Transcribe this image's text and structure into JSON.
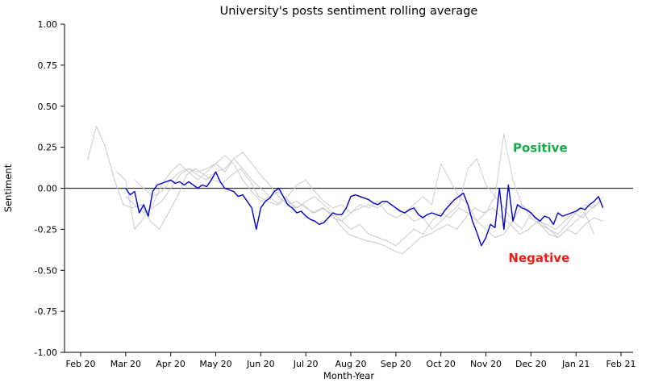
{
  "chart_data": {
    "type": "line",
    "title": "University's posts sentiment rolling average",
    "xlabel": "Month-Year",
    "ylabel": "Sentiment",
    "ylim": [
      -1.0,
      1.0
    ],
    "xlim_months": [
      0,
      12
    ],
    "grid": false,
    "legend": "none",
    "zero_line": {
      "value": 0.0,
      "color": "#333333"
    },
    "ytick_labels": [
      "1.00",
      "0.75",
      "0.50",
      "0.25",
      "0.00",
      "-0.25",
      "-0.50",
      "-0.75",
      "-1.00"
    ],
    "ytick_values": [
      1.0,
      0.75,
      0.5,
      0.25,
      0.0,
      -0.25,
      -0.5,
      -0.75,
      -1.0
    ],
    "xtick_labels": [
      "Feb 20",
      "Mar 20",
      "Apr 20",
      "May 20",
      "Jun 20",
      "Jul 20",
      "Aug 20",
      "Sep 20",
      "Oct 20",
      "Nov 20",
      "Dec 20",
      "Jan 21",
      "Feb 21"
    ],
    "xtick_months": [
      0,
      1,
      2,
      3,
      4,
      5,
      6,
      7,
      8,
      9,
      10,
      11,
      12
    ],
    "annotations": [
      {
        "text": "Positive",
        "color": "#17a846",
        "x_month": 9.6,
        "y_value": 0.22
      },
      {
        "text": "Negative",
        "color": "#e32017",
        "x_month": 9.5,
        "y_value": -0.45
      }
    ],
    "series": [
      {
        "name": "background-series-1",
        "role": "background",
        "color": "#c9c9c9",
        "width": 1,
        "x0": 0.15,
        "dx": 0.2,
        "y": [
          0.17,
          0.38,
          0.25,
          0.05,
          -0.1,
          -0.12,
          -0.1,
          -0.2,
          -0.25,
          -0.15,
          -0.05,
          0.08,
          0.12,
          0.08,
          0.05,
          0.03,
          0.08,
          0.12,
          0.05,
          -0.05,
          -0.08,
          -0.1,
          -0.05,
          -0.12,
          -0.1,
          -0.15,
          -0.12,
          -0.15,
          -0.22,
          -0.28,
          -0.3,
          -0.32,
          -0.33,
          -0.35,
          -0.38,
          -0.4,
          -0.35,
          -0.3,
          -0.28,
          -0.25,
          -0.22,
          -0.25,
          -0.18,
          -0.12,
          -0.15,
          -0.12,
          -0.18,
          -0.22,
          -0.28,
          -0.25,
          -0.2,
          -0.22,
          -0.25,
          -0.2,
          -0.15,
          -0.18,
          -0.12,
          -0.08
        ]
      },
      {
        "name": "background-series-2",
        "role": "background",
        "color": "#cccccc",
        "width": 1,
        "x0": 0.8,
        "dx": 0.2,
        "y": [
          0.1,
          0.05,
          -0.25,
          -0.18,
          -0.1,
          0.02,
          0.1,
          0.15,
          0.1,
          0.05,
          0.1,
          0.15,
          0.2,
          0.15,
          0.05,
          -0.02,
          -0.08,
          -0.05,
          -0.1,
          -0.05,
          0.02,
          0.05,
          -0.02,
          -0.08,
          -0.12,
          -0.1,
          -0.15,
          -0.12,
          -0.1,
          -0.12,
          -0.08,
          -0.12,
          -0.15,
          -0.1,
          -0.05,
          -0.1,
          0.15,
          0.05,
          -0.05,
          -0.1,
          -0.2,
          -0.15,
          -0.05,
          0.33,
          0.05,
          -0.1,
          -0.18,
          -0.22,
          -0.25,
          -0.28,
          -0.22,
          -0.15,
          -0.1,
          -0.12,
          -0.05
        ]
      },
      {
        "name": "background-series-3",
        "role": "background",
        "color": "#c9c9c9",
        "width": 1,
        "x0": 1.0,
        "dx": 0.2,
        "y": [
          -0.05,
          -0.1,
          -0.15,
          -0.12,
          -0.08,
          0.0,
          0.08,
          0.12,
          0.1,
          0.12,
          0.15,
          0.1,
          0.18,
          0.22,
          0.15,
          0.08,
          0.02,
          -0.05,
          -0.1,
          -0.08,
          -0.12,
          -0.15,
          -0.12,
          -0.18,
          -0.2,
          -0.25,
          -0.22,
          -0.28,
          -0.3,
          -0.32,
          -0.35,
          -0.3,
          -0.25,
          -0.28,
          -0.2,
          -0.15,
          -0.18,
          -0.12,
          -0.15,
          -0.2,
          -0.25,
          -0.3,
          -0.28,
          -0.2,
          -0.1,
          -0.15,
          -0.22,
          -0.28,
          -0.3,
          -0.25,
          -0.28,
          -0.22,
          -0.18,
          -0.2
        ]
      },
      {
        "name": "background-series-4",
        "role": "background",
        "color": "#cccccc",
        "width": 1,
        "x0": 1.2,
        "dx": 0.2,
        "y": [
          0.05,
          0.0,
          -0.05,
          -0.02,
          0.05,
          0.1,
          0.12,
          0.08,
          0.05,
          0.1,
          0.12,
          0.18,
          0.12,
          0.05,
          0.0,
          -0.05,
          -0.02,
          -0.08,
          -0.12,
          -0.08,
          -0.05,
          -0.1,
          -0.15,
          -0.2,
          -0.15,
          -0.1,
          -0.12,
          -0.08,
          -0.15,
          -0.18,
          -0.15,
          -0.2,
          -0.18,
          -0.25,
          -0.2,
          -0.15,
          -0.1,
          0.12,
          0.18,
          0.02,
          -0.05,
          -0.12,
          -0.2,
          -0.25,
          -0.15,
          -0.2,
          -0.25,
          -0.3,
          -0.25,
          -0.2,
          -0.15,
          -0.28
        ]
      },
      {
        "name": "rolling-average",
        "role": "main",
        "color": "#0000cd",
        "width": 1.4,
        "x0": 1.0,
        "dx": 0.1,
        "y": [
          0.0,
          -0.04,
          -0.02,
          -0.15,
          -0.1,
          -0.17,
          -0.02,
          0.02,
          0.03,
          0.04,
          0.05,
          0.03,
          0.04,
          0.02,
          0.04,
          0.02,
          0.0,
          0.02,
          0.01,
          0.05,
          0.1,
          0.04,
          0.0,
          -0.01,
          -0.02,
          -0.05,
          -0.04,
          -0.08,
          -0.12,
          -0.25,
          -0.12,
          -0.08,
          -0.06,
          -0.02,
          0.0,
          -0.05,
          -0.1,
          -0.12,
          -0.15,
          -0.14,
          -0.17,
          -0.19,
          -0.2,
          -0.22,
          -0.21,
          -0.18,
          -0.15,
          -0.16,
          -0.16,
          -0.12,
          -0.05,
          -0.04,
          -0.05,
          -0.06,
          -0.07,
          -0.09,
          -0.1,
          -0.08,
          -0.08,
          -0.1,
          -0.12,
          -0.14,
          -0.15,
          -0.13,
          -0.12,
          -0.16,
          -0.18,
          -0.16,
          -0.15,
          -0.16,
          -0.17,
          -0.13,
          -0.1,
          -0.07,
          -0.05,
          -0.03,
          -0.1,
          -0.2,
          -0.27,
          -0.35,
          -0.3,
          -0.22,
          -0.24,
          0.0,
          -0.25,
          0.02,
          -0.2,
          -0.1,
          -0.12,
          -0.13,
          -0.15,
          -0.18,
          -0.2,
          -0.17,
          -0.18,
          -0.22,
          -0.15,
          -0.17,
          -0.16,
          -0.15,
          -0.14,
          -0.12,
          -0.13,
          -0.1,
          -0.08,
          -0.05,
          -0.12
        ]
      }
    ]
  }
}
